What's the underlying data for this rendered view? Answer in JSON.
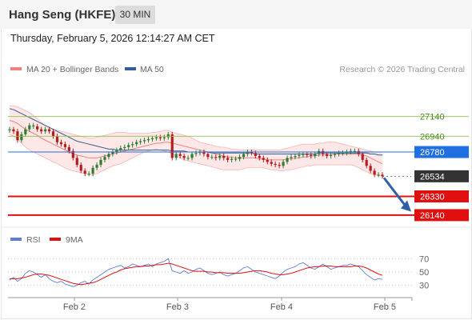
{
  "header": {
    "title": "Hang Seng (HKFE)",
    "interval": "30 MIN"
  },
  "timestamp": "Thursday, February 5, 2026 12:14:27 AM CET",
  "legend": {
    "bollinger": "MA 20 + Bollinger Bands",
    "ma50": "MA 50",
    "rsi": "RSI",
    "rsi_ma": "9MA",
    "credit": "Research © 2026 Trading Central"
  },
  "colors": {
    "bollinger": "#f08080",
    "band_fill": "#fde1e1",
    "ma50": "#34608f",
    "up": "#2e7d32",
    "down": "#b71c1c",
    "resistance": "#8bc34a",
    "pivot": "#1f6fe0",
    "support": "#e01010",
    "last": "#333333",
    "rsi": "#5b7fd6",
    "rsi_ma": "#e01010",
    "forecast_arrow": "#2f5fa8"
  },
  "chart_data": [
    {
      "type": "candlestick",
      "title": "",
      "x_tick_labels": [
        "Feb 2",
        "Feb 3",
        "Feb 4",
        "Feb 5"
      ],
      "y_range": [
        26050,
        27470
      ],
      "levels": [
        {
          "kind": "resistance",
          "value": 27140,
          "label": "27140"
        },
        {
          "kind": "resistance",
          "value": 26940,
          "label": "26940"
        },
        {
          "kind": "pivot",
          "value": 26780,
          "label": "26780"
        },
        {
          "kind": "last",
          "value": 26534,
          "label": "26534"
        },
        {
          "kind": "support",
          "value": 26330,
          "label": "26330"
        },
        {
          "kind": "support",
          "value": 26140,
          "label": "26140"
        }
      ],
      "close": [
        27010,
        26990,
        26900,
        26960,
        27010,
        27050,
        27050,
        27010,
        26990,
        27010,
        26990,
        26940,
        26880,
        26860,
        26830,
        26790,
        26720,
        26650,
        26590,
        26560,
        26560,
        26620,
        26650,
        26700,
        26730,
        26760,
        26780,
        26800,
        26820,
        26830,
        26850,
        26860,
        26880,
        26890,
        26900,
        26910,
        26920,
        26930,
        26920,
        26930,
        26960,
        26720,
        26760,
        26740,
        26720,
        26720,
        26760,
        26770,
        26780,
        26760,
        26730,
        26730,
        26720,
        26740,
        26720,
        26700,
        26710,
        26710,
        26730,
        26760,
        26780,
        26770,
        26740,
        26720,
        26700,
        26680,
        26660,
        26650,
        26640,
        26680,
        26720,
        26730,
        26740,
        26750,
        26760,
        26750,
        26740,
        26760,
        26790,
        26760,
        26740,
        26750,
        26760,
        26770,
        26770,
        26780,
        26790,
        26790,
        26760,
        26700,
        26640,
        26590,
        26550,
        26550,
        26534
      ],
      "open": [
        27000,
        27010,
        26990,
        26900,
        26960,
        27010,
        27040,
        27040,
        27010,
        26990,
        27010,
        26990,
        26940,
        26880,
        26860,
        26830,
        26790,
        26720,
        26650,
        26590,
        26560,
        26560,
        26620,
        26650,
        26700,
        26730,
        26760,
        26780,
        26800,
        26820,
        26830,
        26850,
        26860,
        26880,
        26890,
        26900,
        26910,
        26920,
        26930,
        26920,
        26930,
        26960,
        26720,
        26760,
        26740,
        26720,
        26720,
        26760,
        26770,
        26780,
        26760,
        26730,
        26730,
        26720,
        26740,
        26720,
        26700,
        26710,
        26710,
        26730,
        26760,
        26780,
        26770,
        26740,
        26720,
        26700,
        26680,
        26660,
        26650,
        26640,
        26680,
        26720,
        26730,
        26740,
        26750,
        26760,
        26750,
        26740,
        26760,
        26790,
        26760,
        26740,
        26750,
        26760,
        26770,
        26770,
        26780,
        26790,
        26790,
        26760,
        26700,
        26640,
        26590,
        26550,
        26550
      ],
      "ma20_upper": [
        27250,
        27250,
        27240,
        27220,
        27200,
        27180,
        27150,
        27120,
        27080,
        27050,
        27030,
        27010,
        27000,
        26990,
        26980,
        26970,
        26960,
        26950,
        26940,
        26930,
        26920,
        26920,
        26930,
        26940,
        26950,
        26960,
        26970,
        26980,
        26980,
        26980,
        26970,
        26970,
        26970,
        26970,
        26970,
        26970,
        26980,
        26980,
        26990,
        27000,
        27000,
        26980,
        26970,
        26960,
        26950,
        26940,
        26920,
        26900,
        26880,
        26870,
        26860,
        26850,
        26840,
        26830,
        26830,
        26820,
        26810,
        26810,
        26800,
        26800,
        26800,
        26800,
        26800,
        26800,
        26800,
        26800,
        26800,
        26800,
        26800,
        26810,
        26820,
        26830,
        26840,
        26850,
        26860,
        26860,
        26860,
        26860,
        26870,
        26870,
        26880,
        26880,
        26880,
        26870,
        26860,
        26850,
        26840,
        26830,
        26820,
        26810,
        26800,
        26790,
        26780,
        26780,
        26780
      ],
      "ma20": [
        27100,
        27090,
        27070,
        27040,
        27010,
        26990,
        26970,
        26950,
        26920,
        26900,
        26880,
        26860,
        26840,
        26820,
        26800,
        26780,
        26760,
        26750,
        26740,
        26730,
        26720,
        26720,
        26720,
        26730,
        26740,
        26750,
        26760,
        26770,
        26780,
        26790,
        26800,
        26810,
        26820,
        26830,
        26840,
        26850,
        26860,
        26870,
        26870,
        26880,
        26880,
        26870,
        26860,
        26850,
        26840,
        26830,
        26820,
        26810,
        26800,
        26790,
        26780,
        26770,
        26760,
        26750,
        26740,
        26730,
        26730,
        26720,
        26720,
        26720,
        26720,
        26720,
        26720,
        26710,
        26710,
        26700,
        26700,
        26700,
        26700,
        26700,
        26710,
        26710,
        26720,
        26720,
        26730,
        26730,
        26740,
        26740,
        26750,
        26750,
        26750,
        26750,
        26760,
        26760,
        26760,
        26760,
        26760,
        26760,
        26760,
        26750,
        26740,
        26720,
        26700,
        26680,
        26660
      ],
      "ma20_lower": [
        26960,
        26940,
        26910,
        26870,
        26830,
        26800,
        26780,
        26760,
        26740,
        26720,
        26700,
        26680,
        26660,
        26640,
        26620,
        26600,
        26590,
        26580,
        26570,
        26560,
        26550,
        26550,
        26560,
        26580,
        26600,
        26620,
        26640,
        26650,
        26660,
        26680,
        26700,
        26720,
        26740,
        26760,
        26780,
        26790,
        26800,
        26810,
        26800,
        26790,
        26780,
        26760,
        26740,
        26720,
        26700,
        26690,
        26680,
        26670,
        26660,
        26650,
        26640,
        26630,
        26620,
        26610,
        26600,
        26600,
        26600,
        26600,
        26600,
        26610,
        26620,
        26620,
        26620,
        26620,
        26620,
        26610,
        26600,
        26600,
        26590,
        26590,
        26600,
        26600,
        26610,
        26620,
        26630,
        26640,
        26640,
        26650,
        26650,
        26650,
        26650,
        26650,
        26650,
        26650,
        26650,
        26650,
        26650,
        26640,
        26620,
        26600,
        26580,
        26560,
        26550,
        26540,
        26540
      ],
      "ma50": [
        27220,
        27210,
        27190,
        27170,
        27150,
        27130,
        27110,
        27090,
        27070,
        27050,
        27030,
        27010,
        26990,
        26970,
        26950,
        26930,
        26910,
        26890,
        26880,
        26870,
        26860,
        26850,
        26840,
        26830,
        26820,
        26810,
        26810,
        26800,
        26800,
        26800,
        26800,
        26800,
        26800,
        26800,
        26800,
        26800,
        26800,
        26800,
        26800,
        26800,
        26800,
        26790,
        26790,
        26790,
        26790,
        26780,
        26780,
        26780,
        26780,
        26780,
        26780,
        26770,
        26770,
        26770,
        26770,
        26770,
        26770,
        26770,
        26770,
        26770,
        26770,
        26770,
        26760,
        26760,
        26760,
        26760,
        26760,
        26760,
        26760,
        26760,
        26760,
        26760,
        26760,
        26760,
        26760,
        26760,
        26760,
        26760,
        26770,
        26770,
        26770,
        26770,
        26770,
        26770,
        26770,
        26770,
        26770,
        26770,
        26770,
        26770,
        26770,
        26760,
        26760,
        26750,
        26750
      ],
      "forecast_arrow": {
        "from": 26534,
        "to": 26200
      }
    },
    {
      "type": "line",
      "title": "",
      "series": [
        {
          "name": "RSI",
          "values": [
            38,
            42,
            36,
            40,
            48,
            52,
            50,
            46,
            42,
            46,
            40,
            36,
            34,
            36,
            32,
            30,
            28,
            30,
            34,
            36,
            32,
            38,
            42,
            46,
            50,
            54,
            56,
            58,
            60,
            56,
            58,
            62,
            60,
            58,
            60,
            62,
            58,
            62,
            64,
            66,
            70,
            52,
            50,
            48,
            52,
            48,
            50,
            54,
            56,
            52,
            48,
            46,
            48,
            50,
            46,
            44,
            46,
            48,
            52,
            56,
            58,
            54,
            50,
            48,
            46,
            44,
            42,
            40,
            44,
            50,
            54,
            56,
            58,
            62,
            64,
            60,
            56,
            54,
            58,
            62,
            58,
            54,
            56,
            58,
            60,
            60,
            62,
            60,
            58,
            52,
            46,
            42,
            38,
            40,
            39
          ]
        },
        {
          "name": "9MA",
          "values": [
            40,
            40,
            40,
            41,
            42,
            44,
            46,
            47,
            47,
            46,
            45,
            43,
            41,
            39,
            37,
            35,
            33,
            32,
            31,
            32,
            33,
            34,
            36,
            39,
            42,
            45,
            48,
            50,
            53,
            55,
            56,
            57,
            58,
            58,
            59,
            59,
            60,
            61,
            61,
            62,
            63,
            62,
            60,
            58,
            56,
            54,
            52,
            51,
            51,
            51,
            50,
            50,
            49,
            49,
            49,
            48,
            48,
            48,
            48,
            49,
            50,
            51,
            52,
            52,
            51,
            50,
            48,
            47,
            46,
            46,
            47,
            48,
            50,
            52,
            54,
            56,
            57,
            58,
            58,
            59,
            59,
            59,
            58,
            58,
            58,
            58,
            58,
            59,
            59,
            58,
            56,
            53,
            50,
            47,
            45
          ]
        }
      ],
      "y_ticks": [
        "70",
        "50",
        "30"
      ],
      "y_range": [
        20,
        80
      ],
      "x_tick_labels": [
        "Feb 2",
        "Feb 3",
        "Feb 4",
        "Feb 5"
      ]
    }
  ]
}
